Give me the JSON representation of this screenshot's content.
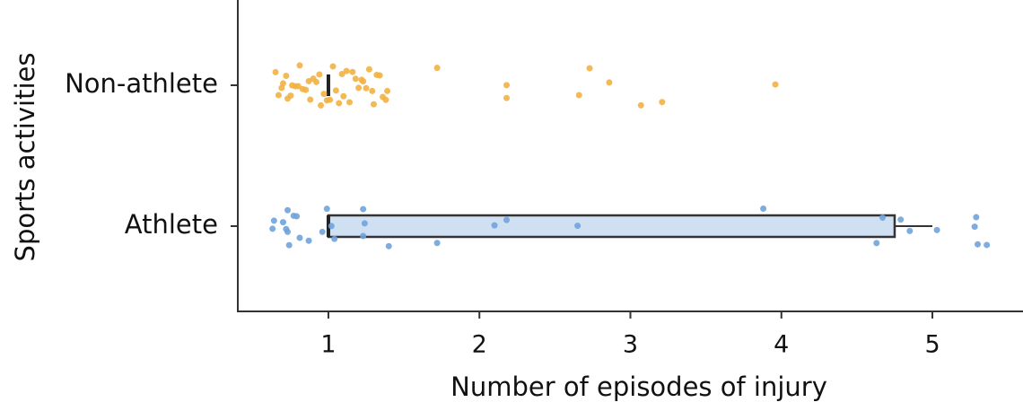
{
  "chart_data": {
    "type": "box",
    "orientation": "horizontal",
    "x_label": "Number of episodes of injury",
    "y_label": "Sports activities",
    "categories": [
      "Non-athlete",
      "Athlete"
    ],
    "xlim": [
      0.4,
      5.6
    ],
    "xticks": [
      1,
      2,
      3,
      4,
      5
    ],
    "boxes": [
      {
        "q1": 1,
        "median": 1,
        "q3": 1,
        "whisker_low": 1,
        "whisker_high": 1,
        "fill": "#fde6b8",
        "point_color": "#f2b143",
        "points": [
          0.65,
          0.67,
          0.69,
          0.7,
          0.72,
          0.73,
          0.75,
          0.76,
          0.78,
          0.8,
          0.81,
          0.83,
          0.85,
          0.87,
          0.88,
          0.9,
          0.92,
          0.94,
          0.95,
          0.97,
          0.99,
          1.01,
          1.03,
          1.05,
          1.07,
          1.09,
          1.1,
          1.12,
          1.14,
          1.16,
          1.18,
          1.2,
          1.22,
          1.23,
          1.25,
          1.27,
          1.29,
          1.3,
          1.32,
          1.34,
          1.36,
          1.38,
          1.39,
          1.72,
          2.18,
          2.18,
          2.66,
          2.73,
          2.86,
          3.07,
          3.21,
          3.96
        ]
      },
      {
        "q1": 1,
        "median": 1,
        "q3": 4.75,
        "whisker_low": 1,
        "whisker_high": 5,
        "fill": "#cfe0f3",
        "point_color": "#6fa3dc",
        "points": [
          0.63,
          0.64,
          0.7,
          0.72,
          0.73,
          0.73,
          0.74,
          0.77,
          0.79,
          0.81,
          0.87,
          0.96,
          0.99,
          1.02,
          1.04,
          1.23,
          1.23,
          1.24,
          1.4,
          1.72,
          2.1,
          2.18,
          2.65,
          3.88,
          4.63,
          4.67,
          4.79,
          4.85,
          5.03,
          5.28,
          5.29,
          5.3,
          5.36
        ]
      }
    ]
  }
}
